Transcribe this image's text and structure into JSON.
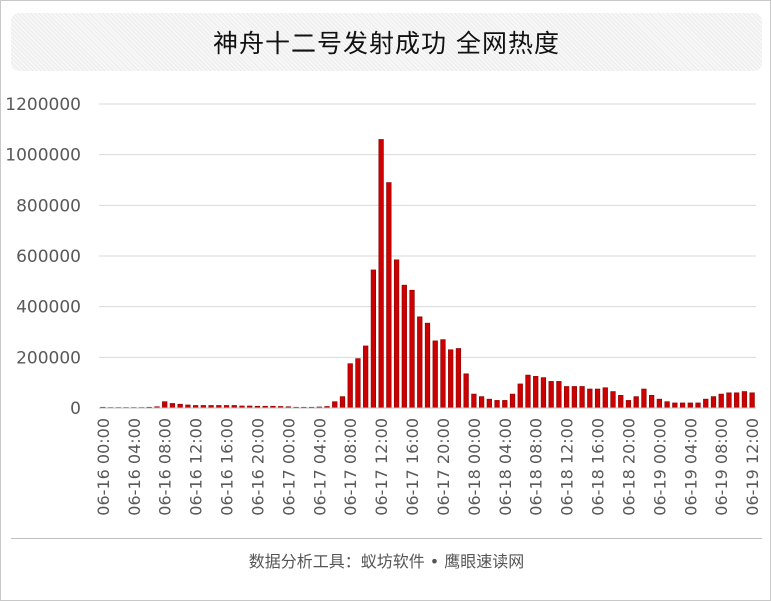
{
  "title": "神舟十二号发射成功 全网热度",
  "footer": "数据分析工具：蚁坊软件 • 鹰眼速读网",
  "colors": {
    "bar": "#cc0000",
    "grid": "#d9d9d9",
    "axis": "#bfbfbf",
    "text": "#595959"
  },
  "chart_data": {
    "type": "bar",
    "title": "神舟十二号发射成功 全网热度",
    "xlabel": "",
    "ylabel": "",
    "ylim": [
      0,
      1200000
    ],
    "yticks": [
      0,
      200000,
      400000,
      600000,
      800000,
      1000000,
      1200000
    ],
    "grid": true,
    "legend": "none",
    "tick_labels": [
      "06-16 00:00",
      "06-16 04:00",
      "06-16 08:00",
      "06-16 12:00",
      "06-16 16:00",
      "06-16 20:00",
      "06-17 00:00",
      "06-17 04:00",
      "06-17 08:00",
      "06-17 12:00",
      "06-17 16:00",
      "06-17 20:00",
      "06-18 00:00",
      "06-18 04:00",
      "06-18 08:00",
      "06-18 12:00",
      "06-18 16:00",
      "06-18 20:00",
      "06-19 00:00",
      "06-19 04:00",
      "06-19 08:00",
      "06-19 12:00"
    ],
    "values": [
      3000,
      2000,
      2000,
      2000,
      2000,
      2000,
      3000,
      5000,
      25000,
      18000,
      15000,
      12000,
      10000,
      10000,
      10000,
      10000,
      10000,
      10000,
      8000,
      8000,
      7000,
      7000,
      7000,
      6000,
      5000,
      3000,
      3000,
      3000,
      4000,
      6000,
      25000,
      45000,
      175000,
      195000,
      245000,
      545000,
      1060000,
      890000,
      585000,
      485000,
      465000,
      360000,
      335000,
      265000,
      270000,
      230000,
      235000,
      135000,
      55000,
      45000,
      35000,
      30000,
      30000,
      55000,
      95000,
      130000,
      125000,
      120000,
      105000,
      105000,
      85000,
      85000,
      85000,
      75000,
      75000,
      80000,
      65000,
      50000,
      30000,
      45000,
      75000,
      50000,
      35000,
      25000,
      20000,
      20000,
      20000,
      20000,
      35000,
      45000,
      55000,
      60000,
      60000,
      65000,
      60000
    ]
  }
}
